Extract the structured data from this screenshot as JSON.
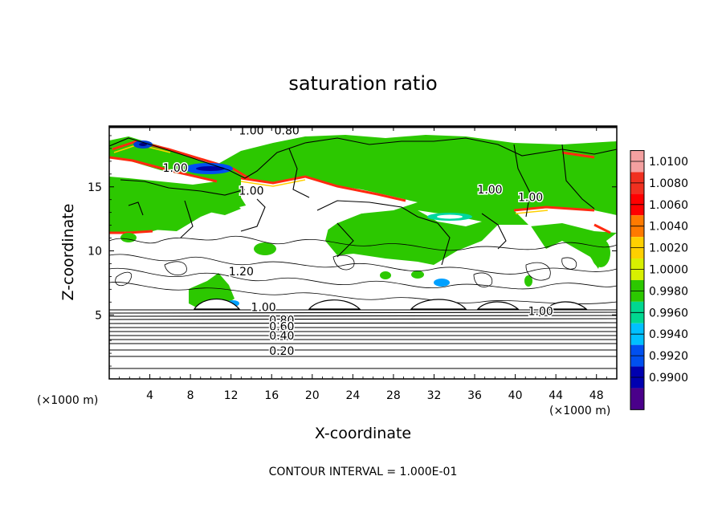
{
  "chart_data": {
    "type": "heatmap",
    "title": "saturation ratio",
    "xlabel": "X-coordinate",
    "ylabel": "Z-coordinate",
    "x_unit": "(×1000 m)",
    "y_unit": "(×1000 m)",
    "xlim": [
      0,
      50
    ],
    "ylim": [
      0,
      19.75
    ],
    "xticks": [
      4,
      8,
      12,
      16,
      20,
      24,
      28,
      32,
      36,
      40,
      44,
      48
    ],
    "yticks": [
      5,
      10,
      15
    ],
    "footer": "CONTOUR INTERVAL = 1.000E-01",
    "colorbar": {
      "labels": [
        "1.0100",
        "1.0080",
        "1.0060",
        "1.0040",
        "1.0020",
        "1.0000",
        "0.9980",
        "0.9960",
        "0.9940",
        "0.9920",
        "0.9900"
      ],
      "colors": [
        "#f4a0a0",
        "#f03020",
        "#ff0000",
        "#ff7a00",
        "#ffd000",
        "#d8f000",
        "#2cc800",
        "#00d890",
        "#00c0ff",
        "#0050f0",
        "#0000b0",
        "#4a008a"
      ]
    },
    "contour_labels": [
      {
        "text": "1.00",
        "x": 14.0,
        "z": 19.4
      },
      {
        "text": "0.80",
        "x": 17.5,
        "z": 19.4
      },
      {
        "text": "1.00",
        "x": 6.5,
        "z": 16.5
      },
      {
        "text": "1.00",
        "x": 14.0,
        "z": 14.7
      },
      {
        "text": "1.00",
        "x": 37.5,
        "z": 14.8
      },
      {
        "text": "1.00",
        "x": 41.5,
        "z": 14.2
      },
      {
        "text": "1.20",
        "x": 13.0,
        "z": 8.4
      },
      {
        "text": "1.00",
        "x": 15.2,
        "z": 5.6
      },
      {
        "text": "0.80",
        "x": 17.0,
        "z": 4.6
      },
      {
        "text": "0.60",
        "x": 17.0,
        "z": 4.1
      },
      {
        "text": "0.40",
        "x": 17.0,
        "z": 3.4
      },
      {
        "text": "0.20",
        "x": 17.0,
        "z": 2.2
      },
      {
        "text": "1.00",
        "x": 42.5,
        "z": 5.3
      }
    ]
  }
}
